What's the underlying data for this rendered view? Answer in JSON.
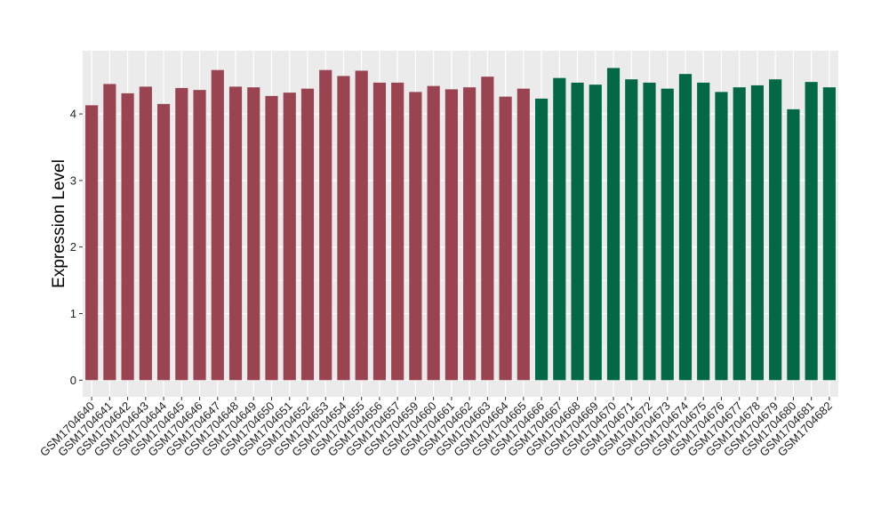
{
  "chart_data": {
    "type": "bar",
    "title": "",
    "xlabel": "",
    "ylabel": "Expression Level",
    "ylim": [
      -0.25,
      4.95
    ],
    "yticks": [
      0,
      1,
      2,
      3,
      4
    ],
    "grid": true,
    "legend": "none",
    "colors": {
      "group1": "#9A4452",
      "group2": "#036845",
      "panel_bg": "#EBEBEB",
      "grid": "#FFFFFF"
    },
    "categories": [
      "GSM1704640",
      "GSM1704641",
      "GSM1704642",
      "GSM1704643",
      "GSM1704644",
      "GSM1704645",
      "GSM1704646",
      "GSM1704647",
      "GSM1704648",
      "GSM1704649",
      "GSM1704650",
      "GSM1704651",
      "GSM1704652",
      "GSM1704653",
      "GSM1704654",
      "GSM1704655",
      "GSM1704656",
      "GSM1704657",
      "GSM1704659",
      "GSM1704660",
      "GSM1704661",
      "GSM1704662",
      "GSM1704663",
      "GSM1704664",
      "GSM1704665",
      "GSM1704666",
      "GSM1704667",
      "GSM1704668",
      "GSM1704669",
      "GSM1704670",
      "GSM1704671",
      "GSM1704672",
      "GSM1704673",
      "GSM1704674",
      "GSM1704675",
      "GSM1704676",
      "GSM1704677",
      "GSM1704678",
      "GSM1704679",
      "GSM1704680",
      "GSM1704681",
      "GSM1704682"
    ],
    "values": [
      4.13,
      4.45,
      4.31,
      4.41,
      4.15,
      4.39,
      4.36,
      4.66,
      4.41,
      4.4,
      4.27,
      4.32,
      4.38,
      4.66,
      4.57,
      4.65,
      4.47,
      4.47,
      4.33,
      4.42,
      4.37,
      4.4,
      4.56,
      4.26,
      4.38,
      4.23,
      4.54,
      4.47,
      4.44,
      4.69,
      4.52,
      4.47,
      4.38,
      4.6,
      4.47,
      4.33,
      4.4,
      4.43,
      4.52,
      4.07,
      4.48,
      4.4
    ],
    "groups": [
      1,
      1,
      1,
      1,
      1,
      1,
      1,
      1,
      1,
      1,
      1,
      1,
      1,
      1,
      1,
      1,
      1,
      1,
      1,
      1,
      1,
      1,
      1,
      1,
      1,
      2,
      2,
      2,
      2,
      2,
      2,
      2,
      2,
      2,
      2,
      2,
      2,
      2,
      2,
      2,
      2,
      2
    ]
  }
}
